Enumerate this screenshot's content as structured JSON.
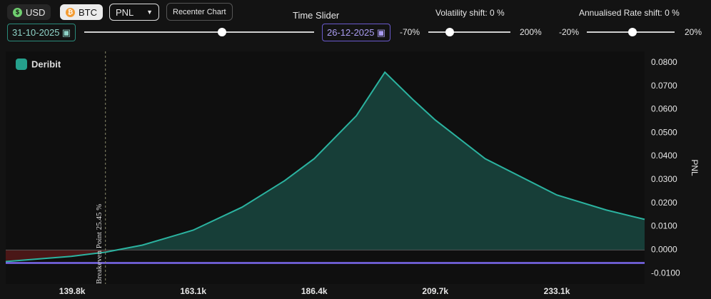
{
  "toolbar": {
    "currencies": [
      "USD",
      "BTC"
    ],
    "view": "PNL",
    "recenter": "Recenter Chart",
    "start_date": "31-10-2025",
    "time_slider_label": "Time Slider",
    "end_date": "26-12-2025",
    "volatility": {
      "label": "Volatility shift: 0 %",
      "min": "-70%",
      "max": "200%"
    },
    "rate": {
      "label": "Annualised Rate shift: 0 %",
      "min": "-20%",
      "max": "20%"
    }
  },
  "brand": "Deribit",
  "chart_data": {
    "type": "area-line",
    "y_label": "PNL",
    "x": [
      127000,
      139600,
      146200,
      153300,
      163100,
      172500,
      180700,
      186400,
      194500,
      200000,
      205500,
      209700,
      219300,
      233100,
      242600,
      250000
    ],
    "values": [
      -0.0049,
      -0.0027,
      -0.0009,
      0.0021,
      0.0085,
      0.0183,
      0.0296,
      0.039,
      0.0573,
      0.0759,
      0.064,
      0.0555,
      0.039,
      0.0235,
      0.0171,
      0.0131
    ],
    "color": "#2bb3a0",
    "xlim": [
      127000,
      250000
    ],
    "xticks": [
      {
        "value": 139800,
        "label": "139.8k"
      },
      {
        "value": 163100,
        "label": "163.1k"
      },
      {
        "value": 186400,
        "label": "186.4k"
      },
      {
        "value": 209700,
        "label": "209.7k"
      },
      {
        "value": 233100,
        "label": "233.1k"
      }
    ],
    "ylim": [
      -0.0145,
      0.0848
    ],
    "yticks": [
      {
        "value": 0.08,
        "label": "0.0800"
      },
      {
        "value": 0.07,
        "label": "0.0700"
      },
      {
        "value": 0.06,
        "label": "0.0600"
      },
      {
        "value": 0.05,
        "label": "0.0500"
      },
      {
        "value": 0.04,
        "label": "0.0400"
      },
      {
        "value": 0.03,
        "label": "0.0300"
      },
      {
        "value": 0.02,
        "label": "0.0200"
      },
      {
        "value": 0.01,
        "label": "0.0100"
      },
      {
        "value": 0,
        "label": "0.0000"
      },
      {
        "value": -0.01,
        "label": "-0.0100"
      }
    ],
    "reference_line": {
      "value": -0.0055,
      "color": "#7b68ee"
    },
    "breakeven": {
      "x": 146200,
      "label": "Breakeven Point 25.45 %"
    }
  }
}
